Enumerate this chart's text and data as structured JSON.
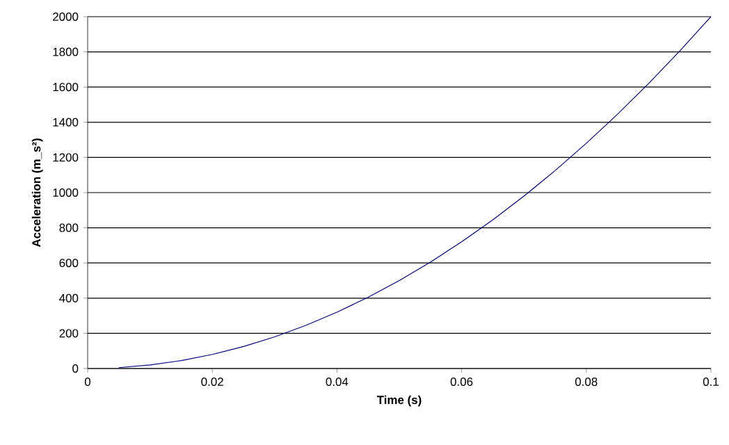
{
  "chart_data": {
    "type": "line",
    "xlabel": "Time (s)",
    "ylabel": "Acceleration (m_s²)",
    "x": [
      0.005,
      0.01,
      0.015,
      0.02,
      0.025,
      0.03,
      0.035,
      0.04,
      0.045,
      0.05,
      0.055,
      0.06,
      0.065,
      0.07,
      0.075,
      0.08,
      0.085,
      0.09,
      0.095,
      0.1
    ],
    "series": [
      {
        "color": "#000080",
        "values": [
          5,
          20,
          45,
          80,
          125,
          180,
          245,
          320,
          405,
          500,
          605,
          720,
          845,
          980,
          1125,
          1280,
          1445,
          1620,
          1805,
          2000
        ]
      }
    ],
    "xlim": [
      0,
      0.1
    ],
    "xticks": [
      0,
      0.02,
      0.04,
      0.06,
      0.08,
      0.1
    ],
    "ylim": [
      0,
      2000
    ],
    "yticks": [
      0,
      200,
      400,
      600,
      800,
      1000,
      1200,
      1400,
      1600,
      1800,
      2000
    ],
    "grid": "y",
    "marker": "none",
    "line_style": "solid"
  }
}
